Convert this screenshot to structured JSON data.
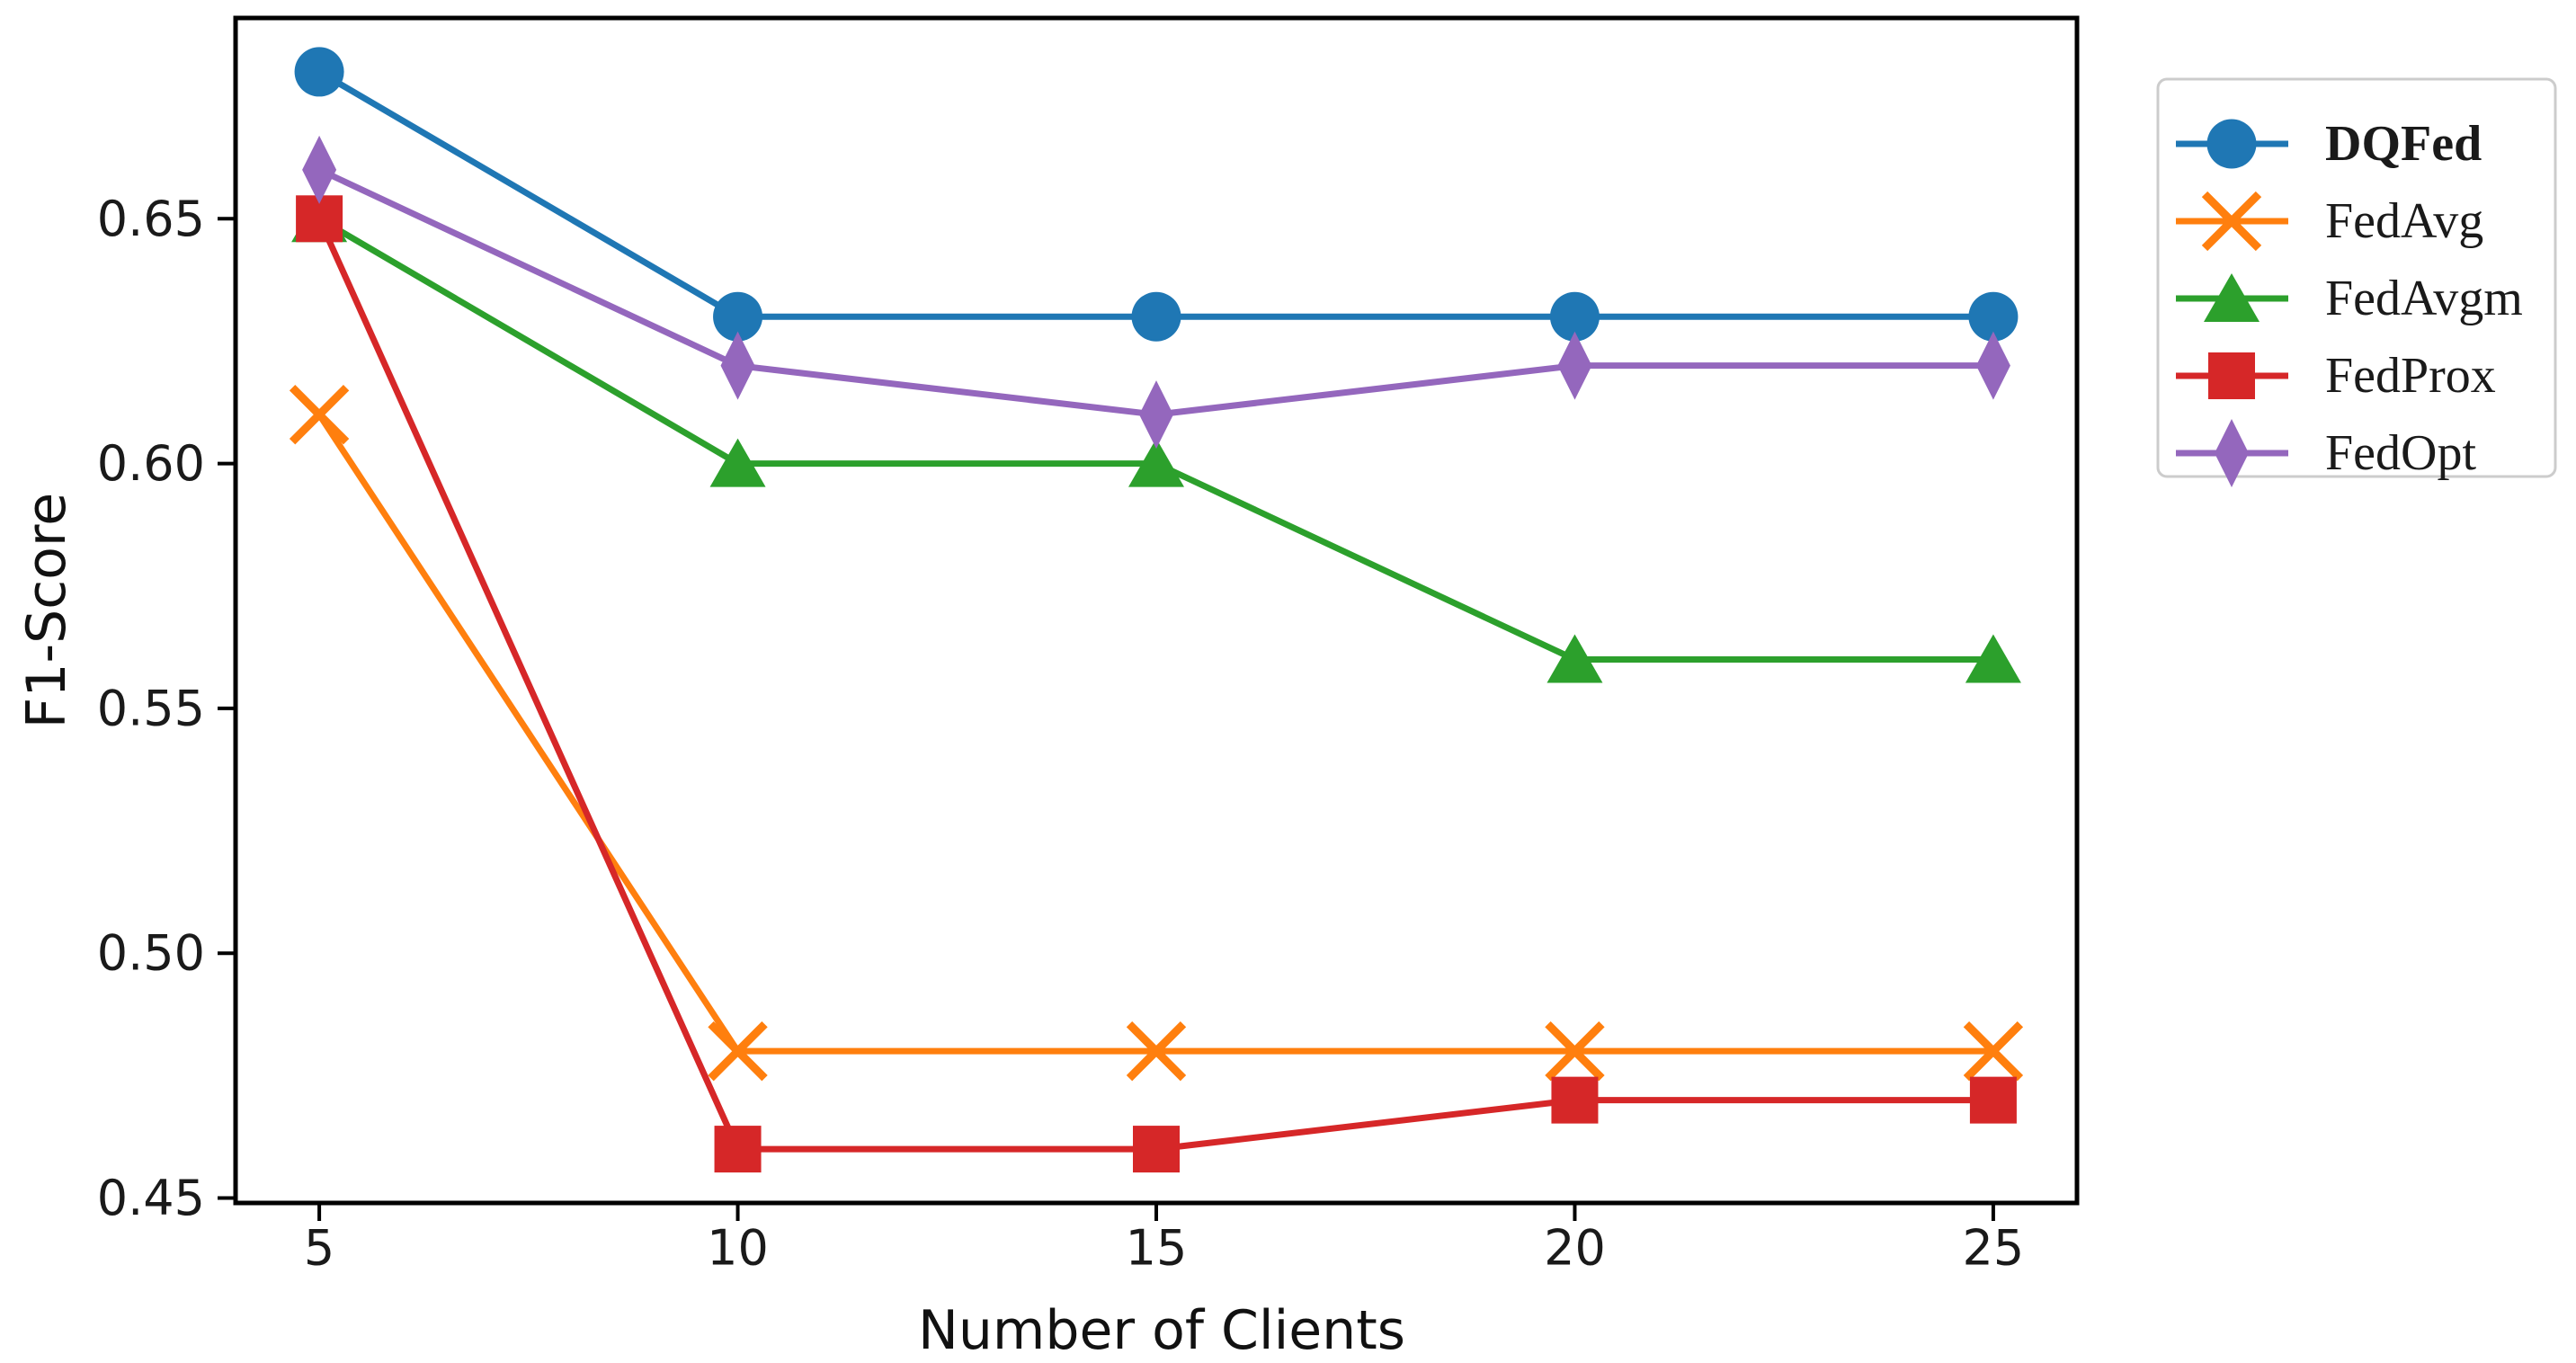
{
  "chart_data": {
    "type": "line",
    "title": "",
    "xlabel": "Number of Clients",
    "ylabel": "F1-Score",
    "x": [
      5,
      10,
      15,
      20,
      25
    ],
    "series": [
      {
        "name": "DQFed",
        "color": "#1f77b4",
        "marker": "circle",
        "bold": true,
        "values": [
          0.68,
          0.63,
          0.63,
          0.63,
          0.63
        ]
      },
      {
        "name": "FedAvg",
        "color": "#ff7f0e",
        "marker": "x",
        "bold": false,
        "values": [
          0.61,
          0.48,
          0.48,
          0.48,
          0.48
        ]
      },
      {
        "name": "FedAvgm",
        "color": "#2ca02c",
        "marker": "triangle",
        "bold": false,
        "values": [
          0.65,
          0.6,
          0.6,
          0.56,
          0.56
        ]
      },
      {
        "name": "FedProx",
        "color": "#d62728",
        "marker": "square",
        "bold": false,
        "values": [
          0.65,
          0.46,
          0.46,
          0.47,
          0.47
        ]
      },
      {
        "name": "FedOpt",
        "color": "#9467bd",
        "marker": "diamond",
        "bold": false,
        "values": [
          0.66,
          0.62,
          0.61,
          0.62,
          0.62
        ]
      }
    ],
    "xticks": [
      5,
      10,
      15,
      20,
      25
    ],
    "xtick_labels": [
      "5",
      "10",
      "15",
      "20",
      "25"
    ],
    "yticks": [
      0.45,
      0.5,
      0.55,
      0.6,
      0.65
    ],
    "ytick_labels": [
      "0.45",
      "0.50",
      "0.55",
      "0.60",
      "0.65"
    ],
    "xlim": [
      4,
      26
    ],
    "ylim": [
      0.449,
      0.691
    ],
    "grid": false,
    "legend_position": "outside-top-right",
    "axis_color": "#000000",
    "tick_label_color": "#1a1a1a",
    "background_color": "#ffffff"
  }
}
